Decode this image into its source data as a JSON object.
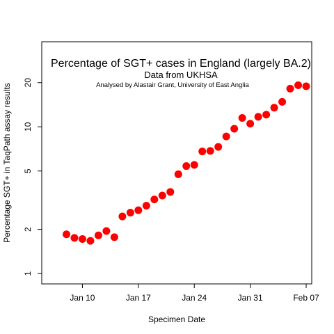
{
  "chart_data": {
    "type": "scatter",
    "title": "Percentage of SGT+ cases in England (largely BA.2)",
    "subtitle": "Data from UKHSA",
    "annotation": "Analysed by Alastair Grant, University of East Anglia",
    "xlabel": "Specimen Date",
    "ylabel": "Percentage SGT+ in TaqPath assay results",
    "y_scale": "log",
    "ylim": [
      0.85,
      38
    ],
    "xlim": [
      "2022-01-07",
      "2022-02-07"
    ],
    "x_ticks": [
      {
        "date": "2022-01-10",
        "label": "Jan 10"
      },
      {
        "date": "2022-01-17",
        "label": "Jan 17"
      },
      {
        "date": "2022-01-24",
        "label": "Jan 24"
      },
      {
        "date": "2022-01-31",
        "label": "Jan 31"
      },
      {
        "date": "2022-02-07",
        "label": "Feb 07"
      }
    ],
    "y_ticks": [
      {
        "value": 1,
        "label": "1"
      },
      {
        "value": 2,
        "label": "2"
      },
      {
        "value": 5,
        "label": "5"
      },
      {
        "value": 10,
        "label": "10"
      },
      {
        "value": 20,
        "label": "20"
      }
    ],
    "marker_color": "#ff0000",
    "series": [
      {
        "x": [
          "2022-01-08",
          "2022-01-09",
          "2022-01-10",
          "2022-01-11",
          "2022-01-12",
          "2022-01-13",
          "2022-01-14",
          "2022-01-15",
          "2022-01-16",
          "2022-01-17",
          "2022-01-18",
          "2022-01-19",
          "2022-01-20",
          "2022-01-21",
          "2022-01-22",
          "2022-01-23",
          "2022-01-24",
          "2022-01-25",
          "2022-01-26",
          "2022-01-27",
          "2022-01-28",
          "2022-01-29",
          "2022-01-30",
          "2022-01-31",
          "2022-02-01",
          "2022-02-02",
          "2022-02-03",
          "2022-02-04",
          "2022-02-05",
          "2022-02-06",
          "2022-02-07"
        ],
        "y": [
          1.85,
          1.75,
          1.72,
          1.67,
          1.82,
          1.95,
          1.77,
          2.45,
          2.6,
          2.7,
          2.9,
          3.2,
          3.4,
          3.6,
          4.75,
          5.4,
          5.5,
          6.8,
          6.85,
          7.3,
          8.6,
          9.7,
          11.5,
          10.5,
          11.7,
          12.1,
          13.5,
          14.8,
          18.2,
          19.2,
          18.9
        ]
      }
    ]
  }
}
